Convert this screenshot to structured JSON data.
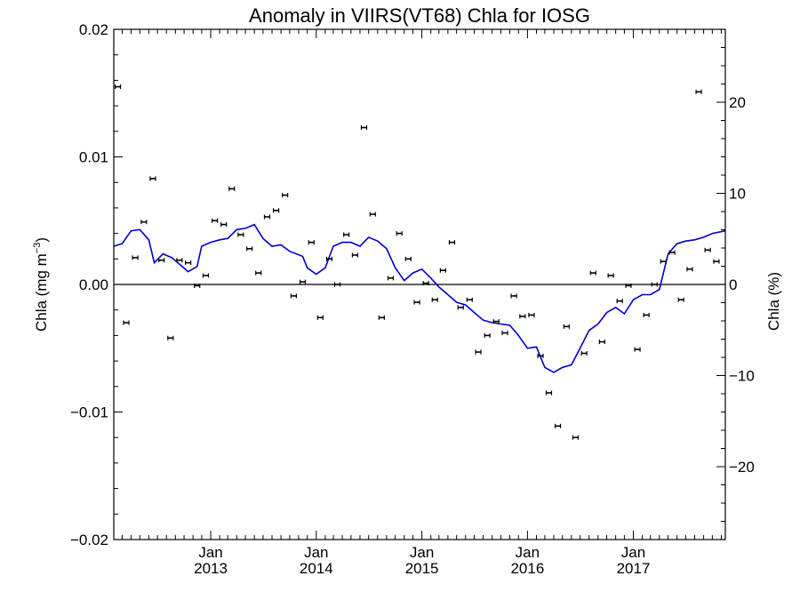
{
  "chart_data": {
    "type": "scatter",
    "title": "Anomaly in VIIRS(VT68) Chla for IOSG",
    "ylabel_left": {
      "text": "Chla (mg m",
      "superscript": "−3",
      "close": ")"
    },
    "ylabel_right": "Chla (%)",
    "x_time_range": [
      "2012-02-01",
      "2017-11-15"
    ],
    "ylim_left": [
      -0.02,
      0.02
    ],
    "ylim_right": [
      -28,
      28
    ],
    "yticks_left": [
      {
        "value": -0.02,
        "label": "−0.02"
      },
      {
        "value": -0.01,
        "label": "−0.01"
      },
      {
        "value": 0.0,
        "label": "0.00"
      },
      {
        "value": 0.01,
        "label": "0.01"
      },
      {
        "value": 0.02,
        "label": "0.02"
      }
    ],
    "yticks_right": [
      {
        "value": -20,
        "label": "−20"
      },
      {
        "value": -10,
        "label": "−10"
      },
      {
        "value": 0,
        "label": "0"
      },
      {
        "value": 10,
        "label": "10"
      },
      {
        "value": 20,
        "label": "20"
      }
    ],
    "xticks": [
      {
        "date": "2013-01-01",
        "month": "Jan",
        "year": "2013"
      },
      {
        "date": "2014-01-01",
        "month": "Jan",
        "year": "2014"
      },
      {
        "date": "2015-01-01",
        "month": "Jan",
        "year": "2015"
      },
      {
        "date": "2016-01-01",
        "month": "Jan",
        "year": "2016"
      },
      {
        "date": "2017-01-01",
        "month": "Jan",
        "year": "2017"
      }
    ],
    "zero_line": true,
    "grid": false,
    "colors": {
      "points": "#000000",
      "smooth_line": "#0000cc",
      "zero_line": "#000000"
    },
    "points": [
      {
        "date": "2012-02-15",
        "y": 0.0155
      },
      {
        "date": "2012-03-15",
        "y": -0.003
      },
      {
        "date": "2012-04-15",
        "y": 0.0021
      },
      {
        "date": "2012-05-15",
        "y": 0.0049
      },
      {
        "date": "2012-06-15",
        "y": 0.0083
      },
      {
        "date": "2012-07-15",
        "y": 0.0019
      },
      {
        "date": "2012-08-15",
        "y": -0.0042
      },
      {
        "date": "2012-09-15",
        "y": 0.0019
      },
      {
        "date": "2012-10-15",
        "y": 0.0017
      },
      {
        "date": "2012-11-15",
        "y": -0.0001
      },
      {
        "date": "2012-12-15",
        "y": 0.0007
      },
      {
        "date": "2013-01-15",
        "y": 0.005
      },
      {
        "date": "2013-02-15",
        "y": 0.0047
      },
      {
        "date": "2013-03-15",
        "y": 0.0075
      },
      {
        "date": "2013-04-15",
        "y": 0.0039
      },
      {
        "date": "2013-05-15",
        "y": 0.0028
      },
      {
        "date": "2013-06-15",
        "y": 0.0009
      },
      {
        "date": "2013-07-15",
        "y": 0.0053
      },
      {
        "date": "2013-08-15",
        "y": 0.0058
      },
      {
        "date": "2013-09-15",
        "y": 0.007
      },
      {
        "date": "2013-10-15",
        "y": -0.0009
      },
      {
        "date": "2013-11-15",
        "y": 0.0002
      },
      {
        "date": "2013-12-15",
        "y": 0.0033
      },
      {
        "date": "2014-01-15",
        "y": -0.0026
      },
      {
        "date": "2014-02-15",
        "y": 0.002
      },
      {
        "date": "2014-03-15",
        "y": 0.0
      },
      {
        "date": "2014-04-15",
        "y": 0.0039
      },
      {
        "date": "2014-05-15",
        "y": 0.0023
      },
      {
        "date": "2014-06-15",
        "y": 0.0123
      },
      {
        "date": "2014-07-15",
        "y": 0.0055
      },
      {
        "date": "2014-08-15",
        "y": -0.0026
      },
      {
        "date": "2014-09-15",
        "y": 0.0005
      },
      {
        "date": "2014-10-15",
        "y": 0.004
      },
      {
        "date": "2014-11-15",
        "y": 0.002
      },
      {
        "date": "2014-12-15",
        "y": -0.0014
      },
      {
        "date": "2015-01-15",
        "y": 0.0001
      },
      {
        "date": "2015-02-15",
        "y": -0.0012
      },
      {
        "date": "2015-03-15",
        "y": 0.0011
      },
      {
        "date": "2015-04-15",
        "y": 0.0033
      },
      {
        "date": "2015-05-15",
        "y": -0.0018
      },
      {
        "date": "2015-06-15",
        "y": -0.0012
      },
      {
        "date": "2015-07-15",
        "y": -0.0053
      },
      {
        "date": "2015-08-15",
        "y": -0.004
      },
      {
        "date": "2015-09-15",
        "y": -0.0029
      },
      {
        "date": "2015-10-15",
        "y": -0.0038
      },
      {
        "date": "2015-11-15",
        "y": -0.0009
      },
      {
        "date": "2015-12-15",
        "y": -0.0025
      },
      {
        "date": "2016-01-15",
        "y": -0.0024
      },
      {
        "date": "2016-02-15",
        "y": -0.0056
      },
      {
        "date": "2016-03-15",
        "y": -0.0085
      },
      {
        "date": "2016-04-15",
        "y": -0.0111
      },
      {
        "date": "2016-05-15",
        "y": -0.0033
      },
      {
        "date": "2016-06-15",
        "y": -0.012
      },
      {
        "date": "2016-07-15",
        "y": -0.0054
      },
      {
        "date": "2016-08-15",
        "y": 0.0009
      },
      {
        "date": "2016-09-15",
        "y": -0.0045
      },
      {
        "date": "2016-10-15",
        "y": 0.0007
      },
      {
        "date": "2016-11-15",
        "y": -0.0013
      },
      {
        "date": "2016-12-15",
        "y": -0.0001
      },
      {
        "date": "2017-01-15",
        "y": -0.0051
      },
      {
        "date": "2017-02-15",
        "y": -0.0024
      },
      {
        "date": "2017-03-15",
        "y": 0.0
      },
      {
        "date": "2017-04-15",
        "y": 0.0018
      },
      {
        "date": "2017-05-15",
        "y": 0.0025
      },
      {
        "date": "2017-06-15",
        "y": -0.0012
      },
      {
        "date": "2017-07-15",
        "y": 0.0012
      },
      {
        "date": "2017-08-15",
        "y": 0.0151
      },
      {
        "date": "2017-09-15",
        "y": 0.0027
      },
      {
        "date": "2017-10-15",
        "y": 0.0018
      }
    ],
    "smooth_line": [
      {
        "date": "2012-02-01",
        "y": 0.003
      },
      {
        "date": "2012-03-01",
        "y": 0.0032
      },
      {
        "date": "2012-04-01",
        "y": 0.0042
      },
      {
        "date": "2012-05-01",
        "y": 0.0043
      },
      {
        "date": "2012-06-01",
        "y": 0.0035
      },
      {
        "date": "2012-06-20",
        "y": 0.0017
      },
      {
        "date": "2012-07-20",
        "y": 0.0024
      },
      {
        "date": "2012-08-20",
        "y": 0.0021
      },
      {
        "date": "2012-09-20",
        "y": 0.0015
      },
      {
        "date": "2012-10-15",
        "y": 0.001
      },
      {
        "date": "2012-11-15",
        "y": 0.0014
      },
      {
        "date": "2012-12-01",
        "y": 0.003
      },
      {
        "date": "2013-01-01",
        "y": 0.0033
      },
      {
        "date": "2013-02-01",
        "y": 0.0035
      },
      {
        "date": "2013-03-01",
        "y": 0.0036
      },
      {
        "date": "2013-04-01",
        "y": 0.0043
      },
      {
        "date": "2013-05-01",
        "y": 0.0044
      },
      {
        "date": "2013-06-01",
        "y": 0.0047
      },
      {
        "date": "2013-07-01",
        "y": 0.0036
      },
      {
        "date": "2013-08-01",
        "y": 0.003
      },
      {
        "date": "2013-09-01",
        "y": 0.0031
      },
      {
        "date": "2013-10-01",
        "y": 0.0026
      },
      {
        "date": "2013-11-15",
        "y": 0.0022
      },
      {
        "date": "2013-12-01",
        "y": 0.0013
      },
      {
        "date": "2014-01-01",
        "y": 0.0008
      },
      {
        "date": "2014-02-01",
        "y": 0.0013
      },
      {
        "date": "2014-03-01",
        "y": 0.003
      },
      {
        "date": "2014-04-01",
        "y": 0.0033
      },
      {
        "date": "2014-05-01",
        "y": 0.0033
      },
      {
        "date": "2014-06-01",
        "y": 0.003
      },
      {
        "date": "2014-07-01",
        "y": 0.0037
      },
      {
        "date": "2014-08-01",
        "y": 0.0034
      },
      {
        "date": "2014-09-01",
        "y": 0.0028
      },
      {
        "date": "2014-10-01",
        "y": 0.0013
      },
      {
        "date": "2014-11-01",
        "y": 0.0003
      },
      {
        "date": "2014-12-01",
        "y": 0.0009
      },
      {
        "date": "2015-01-01",
        "y": 0.0012
      },
      {
        "date": "2015-02-01",
        "y": 0.0005
      },
      {
        "date": "2015-03-01",
        "y": -0.0002
      },
      {
        "date": "2015-04-01",
        "y": -0.0008
      },
      {
        "date": "2015-05-01",
        "y": -0.0014
      },
      {
        "date": "2015-06-01",
        "y": -0.0016
      },
      {
        "date": "2015-07-01",
        "y": -0.0022
      },
      {
        "date": "2015-08-01",
        "y": -0.0028
      },
      {
        "date": "2015-09-01",
        "y": -0.003
      },
      {
        "date": "2015-10-01",
        "y": -0.0031
      },
      {
        "date": "2015-11-01",
        "y": -0.0032
      },
      {
        "date": "2015-12-01",
        "y": -0.004
      },
      {
        "date": "2016-01-01",
        "y": -0.005
      },
      {
        "date": "2016-02-01",
        "y": -0.0049
      },
      {
        "date": "2016-03-01",
        "y": -0.0065
      },
      {
        "date": "2016-04-01",
        "y": -0.0069
      },
      {
        "date": "2016-05-01",
        "y": -0.0065
      },
      {
        "date": "2016-06-01",
        "y": -0.0063
      },
      {
        "date": "2016-07-01",
        "y": -0.005
      },
      {
        "date": "2016-08-01",
        "y": -0.0036
      },
      {
        "date": "2016-09-01",
        "y": -0.0031
      },
      {
        "date": "2016-10-01",
        "y": -0.0022
      },
      {
        "date": "2016-11-01",
        "y": -0.0018
      },
      {
        "date": "2016-12-01",
        "y": -0.0023
      },
      {
        "date": "2017-01-01",
        "y": -0.0012
      },
      {
        "date": "2017-02-01",
        "y": -0.0008
      },
      {
        "date": "2017-03-01",
        "y": -0.0008
      },
      {
        "date": "2017-04-01",
        "y": -0.0004
      },
      {
        "date": "2017-05-01",
        "y": 0.0024
      },
      {
        "date": "2017-06-01",
        "y": 0.0032
      },
      {
        "date": "2017-07-01",
        "y": 0.0034
      },
      {
        "date": "2017-08-01",
        "y": 0.0035
      },
      {
        "date": "2017-09-01",
        "y": 0.0037
      },
      {
        "date": "2017-10-01",
        "y": 0.004
      },
      {
        "date": "2017-11-15",
        "y": 0.0042
      }
    ]
  }
}
